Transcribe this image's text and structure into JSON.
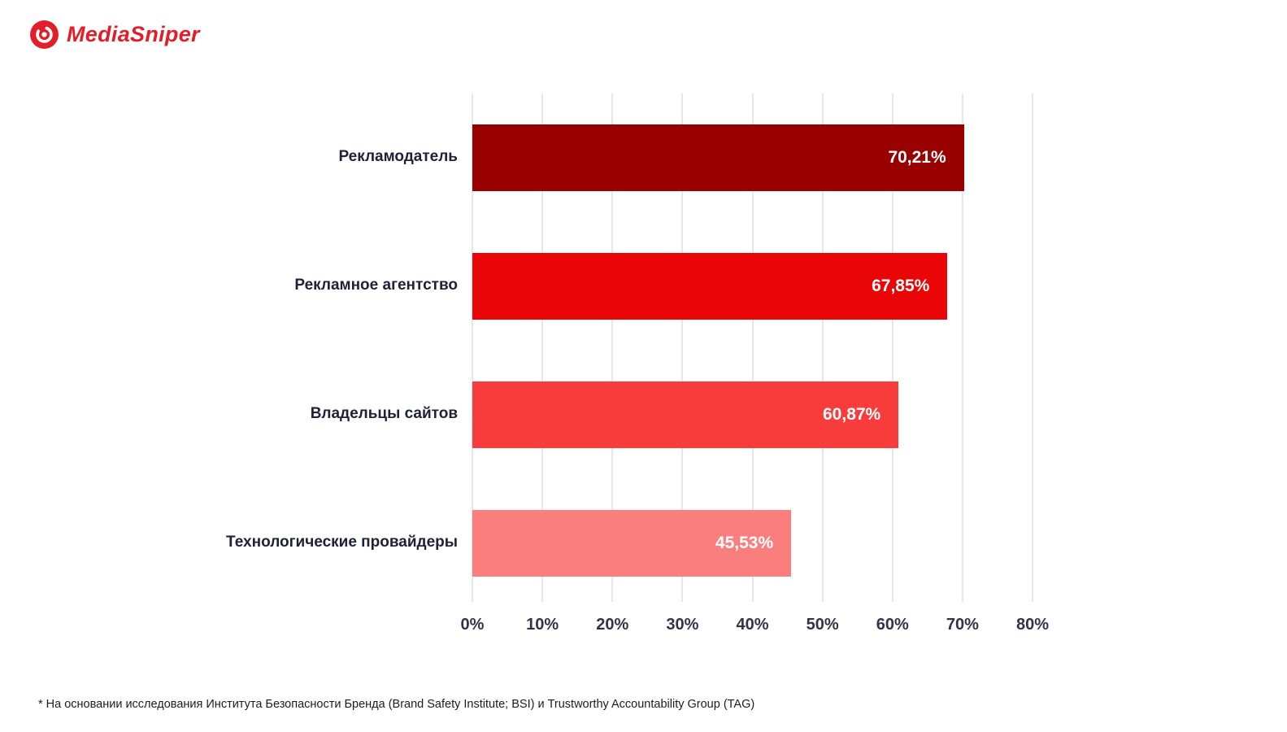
{
  "brand": {
    "name": "MediaSniper",
    "color": "#e31e29"
  },
  "chart_data": {
    "type": "bar",
    "orientation": "horizontal",
    "title": "",
    "categories": [
      "Рекламодатель",
      "Рекламное агентство",
      "Владельцы сайтов",
      "Технологические провайдеры"
    ],
    "values": [
      70.21,
      67.85,
      60.87,
      45.53
    ],
    "value_labels": [
      "70,21%",
      "67,85%",
      "60,87%",
      "45,53%"
    ],
    "bar_colors": [
      "#990000",
      "#ea0606",
      "#f83b3b",
      "#fb7e7e"
    ],
    "x_ticks": [
      "0%",
      "10%",
      "20%",
      "30%",
      "40%",
      "50%",
      "60%",
      "70%",
      "80%"
    ],
    "xlim": [
      0,
      80
    ],
    "grid": true,
    "legend": "none"
  },
  "footnote": "* На основании исследования Института Безопасности Бренда (Brand Safety Institute; BSI) и Trustworthy Accountability Group (TAG)"
}
